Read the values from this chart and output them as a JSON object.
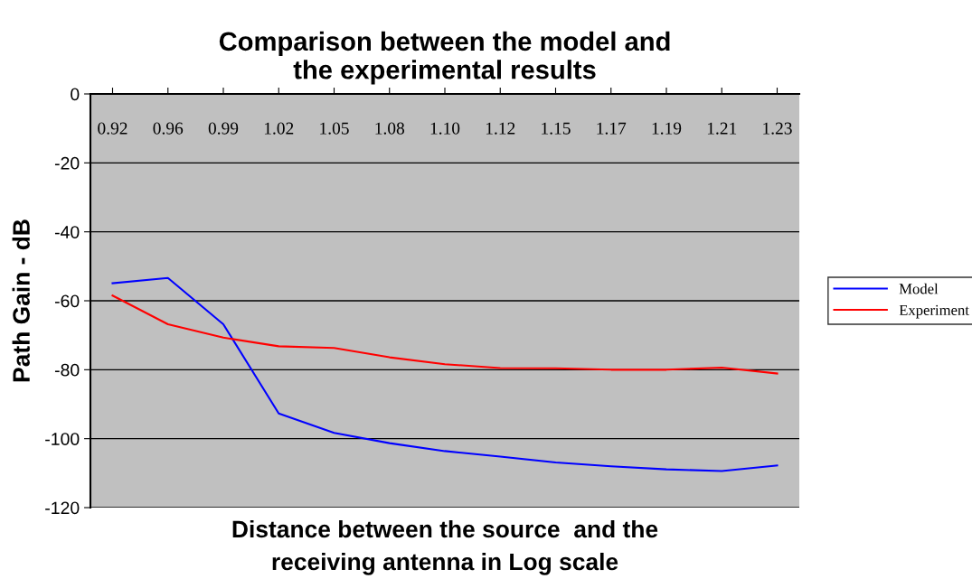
{
  "chart_data": {
    "type": "line",
    "title": "Comparison between the model and\nthe experimental results",
    "xlabel": "Distance between the source  and the\nreceiving antenna in Log scale",
    "ylabel": "Path Gain - dB",
    "categories": [
      "0.92",
      "0.96",
      "0.99",
      "1.02",
      "1.05",
      "1.08",
      "1.10",
      "1.12",
      "1.15",
      "1.17",
      "1.19",
      "1.21",
      "1.23"
    ],
    "series": [
      {
        "name": "Model",
        "color": "#0000ff",
        "values": [
          -54.9,
          -53.4,
          -66.8,
          -92.7,
          -98.3,
          -101.3,
          -103.6,
          -105.2,
          -106.9,
          -108.0,
          -108.9,
          -109.4,
          -107.8
        ]
      },
      {
        "name": "Experiment",
        "color": "#ff0000",
        "values": [
          -58.5,
          -66.8,
          -70.7,
          -73.2,
          -73.7,
          -76.4,
          -78.4,
          -79.5,
          -79.6,
          -80.0,
          -80.0,
          -79.4,
          -81.1
        ]
      }
    ],
    "ylim": [
      -120,
      0
    ],
    "yticks": [
      -120,
      -100,
      -80,
      -60,
      -40,
      -20,
      0
    ],
    "grid": "y",
    "legend": "right",
    "marker": "none",
    "line_style": "solid"
  }
}
